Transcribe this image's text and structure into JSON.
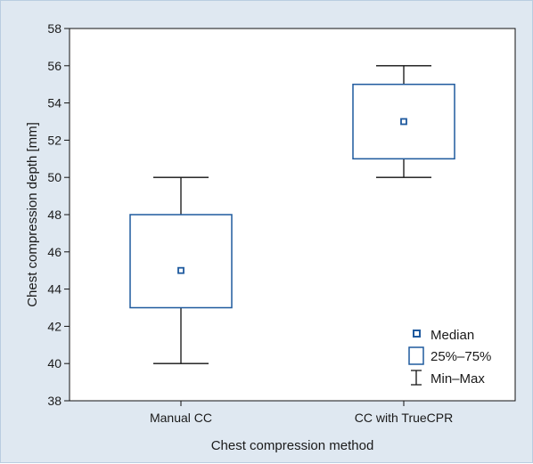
{
  "chart_data": {
    "type": "box",
    "title": "",
    "xlabel": "Chest compression method",
    "ylabel": "Chest compression depth [mm]",
    "ylim": [
      38,
      58
    ],
    "yticks": [
      38,
      40,
      42,
      44,
      46,
      48,
      50,
      52,
      54,
      56,
      58
    ],
    "grid": false,
    "legend_position": "bottom-right",
    "categories": [
      "Manual CC",
      "CC with TrueCPR"
    ],
    "series": [
      {
        "category": "Manual CC",
        "min": 40,
        "q1": 43,
        "median": 45,
        "q3": 48,
        "max": 50
      },
      {
        "category": "CC with TrueCPR",
        "min": 50,
        "q1": 51,
        "median": 53,
        "q3": 55,
        "max": 56
      }
    ],
    "legend": {
      "median": "Median",
      "iqr": "25%–75%",
      "range": "Min–Max"
    },
    "colors": {
      "box": "#1f5a9e",
      "whisker": "#111111",
      "background": "#dfe8f1",
      "plot_background": "#ffffff"
    }
  }
}
